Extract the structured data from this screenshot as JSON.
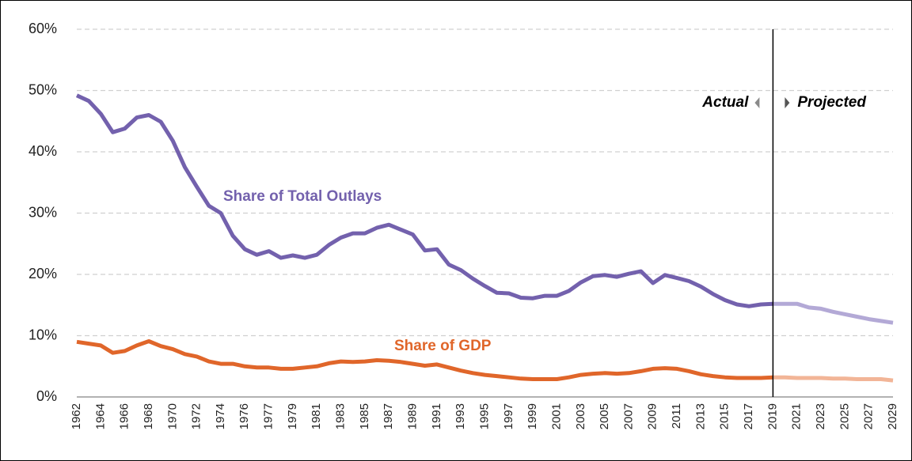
{
  "chart_data": {
    "type": "line",
    "categories": [
      "1962",
      null,
      "1964",
      null,
      "1966",
      null,
      "1968",
      null,
      "1970",
      null,
      "1972",
      null,
      "1974",
      null,
      "1976",
      null,
      "1977",
      null,
      "1979",
      null,
      "1981",
      null,
      "1983",
      null,
      "1985",
      null,
      "1987",
      null,
      "1989",
      null,
      "1991",
      null,
      "1993",
      null,
      "1995",
      null,
      "1997",
      null,
      "1999",
      null,
      "2001",
      null,
      "2003",
      null,
      "2005",
      null,
      "2007",
      null,
      "2009",
      null,
      "2011",
      null,
      "2013",
      null,
      "2015",
      null,
      "2017",
      null,
      "2019",
      null,
      "2021",
      null,
      "2023",
      null,
      "2025",
      null,
      "2027",
      null,
      "2029"
    ],
    "series": [
      {
        "name": "Share of Total Outlays",
        "color": "#7361ad",
        "projected_color": "#b3a9d6",
        "values": [
          49.2,
          48.3,
          46.2,
          43.2,
          43.8,
          45.6,
          46.0,
          44.9,
          41.8,
          37.5,
          34.3,
          31.2,
          30.0,
          26.3,
          24.1,
          23.2,
          23.8,
          22.7,
          23.1,
          22.7,
          23.2,
          24.8,
          26.0,
          26.7,
          26.7,
          27.6,
          28.1,
          27.3,
          26.5,
          23.9,
          24.1,
          21.6,
          20.7,
          19.3,
          18.1,
          17.0,
          16.9,
          16.2,
          16.1,
          16.5,
          16.5,
          17.3,
          18.7,
          19.7,
          19.9,
          19.6,
          20.1,
          20.5,
          18.6,
          19.9,
          19.4,
          18.9,
          18.0,
          16.8,
          15.8,
          15.1,
          14.8,
          15.1,
          15.2,
          15.2,
          15.2,
          14.6,
          14.4,
          13.9,
          13.5,
          13.1,
          12.7,
          12.4,
          12.1
        ]
      },
      {
        "name": "Share of GDP",
        "color": "#e0662a",
        "projected_color": "#f2b597",
        "values": [
          9.0,
          8.7,
          8.4,
          7.2,
          7.5,
          8.4,
          9.1,
          8.3,
          7.8,
          7.0,
          6.6,
          5.8,
          5.4,
          5.4,
          5.0,
          4.8,
          4.8,
          4.6,
          4.6,
          4.8,
          5.0,
          5.5,
          5.8,
          5.7,
          5.8,
          6.0,
          5.9,
          5.7,
          5.4,
          5.1,
          5.3,
          4.8,
          4.3,
          3.9,
          3.6,
          3.4,
          3.2,
          3.0,
          2.9,
          2.9,
          2.9,
          3.2,
          3.6,
          3.8,
          3.9,
          3.8,
          3.9,
          4.2,
          4.6,
          4.7,
          4.6,
          4.2,
          3.7,
          3.4,
          3.2,
          3.1,
          3.1,
          3.1,
          3.2,
          3.2,
          3.1,
          3.1,
          3.1,
          3.0,
          3.0,
          2.9,
          2.9,
          2.9,
          2.7
        ]
      }
    ],
    "divider_x": "2019",
    "annotations": [
      "Actual",
      "Projected"
    ],
    "ylim": [
      0,
      60
    ],
    "yticks": [
      {
        "value": 0,
        "label": "0%"
      },
      {
        "value": 10,
        "label": "10%"
      },
      {
        "value": 20,
        "label": "20%"
      },
      {
        "value": 30,
        "label": "30%"
      },
      {
        "value": 40,
        "label": "40%"
      },
      {
        "value": 50,
        "label": "50%"
      },
      {
        "value": 60,
        "label": "60%"
      }
    ],
    "grid": true
  }
}
